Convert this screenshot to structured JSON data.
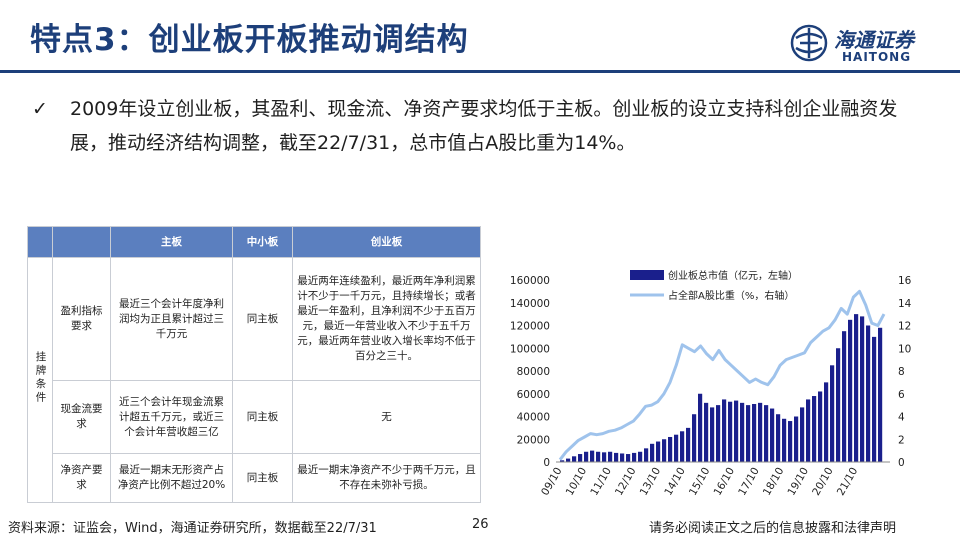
{
  "header": {
    "title": "特点3：创业板开板推动调结构",
    "logo_cn": "海通证券",
    "logo_en": "HAITONG"
  },
  "bullet": {
    "check": "✓",
    "text": "2009年设立创业板，其盈利、现金流、净资产要求均低于主板。创业板的设立支持科创企业融资发展，推动经济结构调整，截至22/7/31，总市值占A股比重为14%。"
  },
  "table": {
    "headers": [
      "",
      "",
      "主板",
      "中小板",
      "创业板"
    ],
    "group_label": "挂牌条件",
    "rows": [
      {
        "label": "盈利指标要求",
        "main": "最近三个会计年度净利润均为正且累计超过三千万元",
        "sme": "同主板",
        "gem": "最近两年连续盈利，最近两年净利润累计不少于一千万元，且持续增长；或者最近一年盈利，且净利润不少于五百万元，最近一年营业收入不少于五千万元，最近两年营业收入增长率均不低于百分之三十。"
      },
      {
        "label": "现金流要求",
        "main": "近三个会计年现金流累计超五千万元，或近三个会计年营收超三亿",
        "sme": "同主板",
        "gem": "无"
      },
      {
        "label": "净资产要求",
        "main": "最近一期末无形资产占净资产比例不超过20%",
        "sme": "同主板",
        "gem": "最近一期末净资产不少于两千万元，且不存在未弥补亏损。"
      }
    ]
  },
  "chart_data": {
    "type": "bar",
    "legend": [
      "创业板总市值（亿元，左轴）",
      "占全部A股比重（%，右轴）"
    ],
    "colors": {
      "bars": "#1a1f8c",
      "line": "#9fc3ec"
    },
    "x_ticks": [
      "09/10",
      "10/10",
      "11/10",
      "12/10",
      "13/10",
      "14/10",
      "15/10",
      "16/10",
      "17/10",
      "18/10",
      "19/10",
      "20/10",
      "21/10"
    ],
    "y_left_ticks": [
      "0",
      "20000",
      "40000",
      "60000",
      "80000",
      "100000",
      "120000",
      "140000",
      "160000"
    ],
    "y_right_ticks": [
      "0",
      "2",
      "4",
      "6",
      "8",
      "10",
      "12",
      "14",
      "16"
    ],
    "ylim_left": [
      0,
      160000
    ],
    "ylim_right": [
      0,
      16
    ],
    "series": [
      {
        "name": "创业板总市值（亿元，左轴）",
        "axis": "left",
        "values": [
          1500,
          3000,
          5000,
          7000,
          9000,
          10000,
          9000,
          8500,
          9000,
          8000,
          7500,
          7000,
          8000,
          9000,
          12000,
          16000,
          18000,
          20000,
          22000,
          24000,
          27000,
          30000,
          42000,
          60000,
          52000,
          48000,
          50000,
          55000,
          53000,
          54000,
          52000,
          50000,
          51000,
          52000,
          50000,
          47000,
          42000,
          38000,
          36000,
          40000,
          48000,
          55000,
          58000,
          62000,
          70000,
          85000,
          100000,
          115000,
          125000,
          130000,
          128000,
          120000,
          110000,
          118000
        ]
      },
      {
        "name": "占全部A股比重（%，右轴）",
        "axis": "right",
        "values": [
          0.2,
          0.9,
          1.4,
          1.9,
          2.2,
          2.5,
          2.4,
          2.5,
          2.7,
          2.8,
          3.0,
          3.3,
          3.6,
          4.2,
          4.9,
          5.0,
          5.3,
          6.0,
          7.0,
          8.5,
          10.3,
          10.0,
          9.7,
          10.2,
          9.5,
          9.0,
          9.8,
          9.0,
          8.5,
          8.0,
          7.5,
          7.0,
          7.3,
          7.0,
          6.8,
          7.5,
          8.5,
          9.0,
          9.2,
          9.4,
          9.6,
          10.5,
          11.0,
          11.5,
          11.8,
          12.5,
          13.5,
          13.0,
          14.5,
          15.0,
          13.8,
          12.2,
          12.0,
          13.0
        ]
      }
    ]
  },
  "footer": {
    "source": "资料来源：证监会，Wind，海通证券研究所，数据截至22/7/31",
    "page": "26",
    "disclaimer": "请务必阅读正文之后的信息披露和法律声明"
  }
}
